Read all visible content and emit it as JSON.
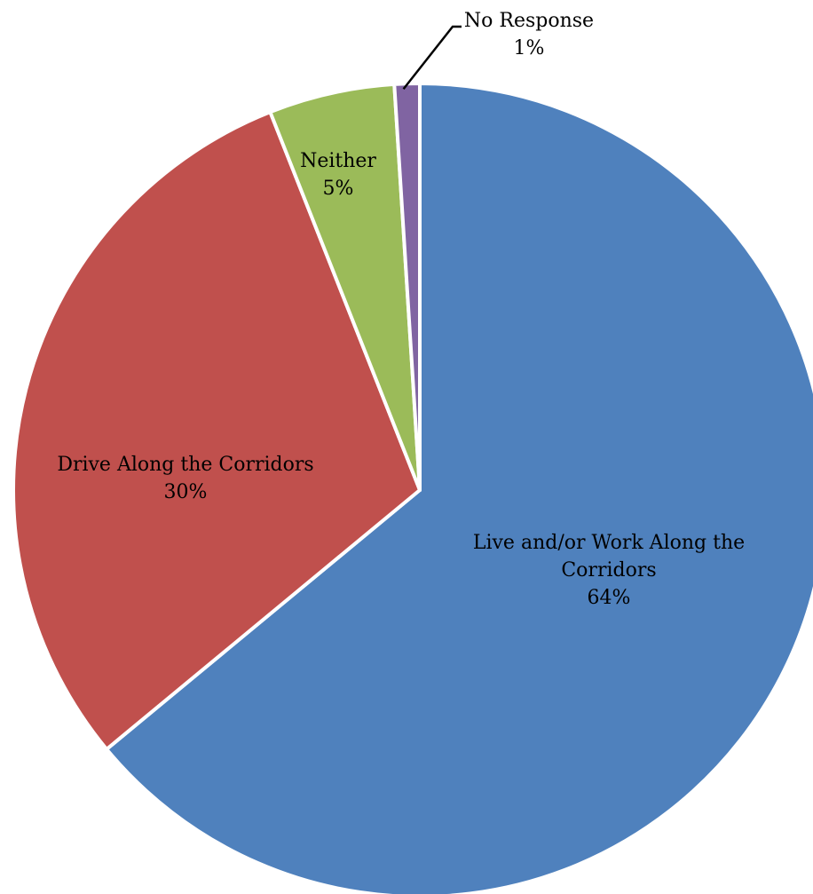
{
  "chart_data": {
    "type": "pie",
    "slices": [
      {
        "label_lines": [
          "Live and/or Work Along the",
          "Corridors"
        ],
        "value": 64,
        "value_label": "64%",
        "color": "#4F81BD"
      },
      {
        "label_lines": [
          "Drive Along the Corridors"
        ],
        "value": 30,
        "value_label": "30%",
        "color": "#C0504D"
      },
      {
        "label_lines": [
          "Neither"
        ],
        "value": 5,
        "value_label": "5%",
        "color": "#9BBB59"
      },
      {
        "label_lines": [
          "No Response"
        ],
        "value": 1,
        "value_label": "1%",
        "color": "#8064A2"
      }
    ],
    "legend": "none"
  }
}
